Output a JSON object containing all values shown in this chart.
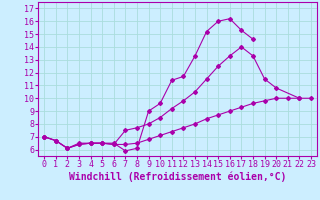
{
  "xlabel": "Windchill (Refroidissement éolien,°C)",
  "bg_color": "#cceeff",
  "line_color": "#aa00aa",
  "grid_color": "#aadddd",
  "xlim": [
    -0.5,
    23.5
  ],
  "ylim": [
    5.5,
    17.5
  ],
  "xticks": [
    0,
    1,
    2,
    3,
    4,
    5,
    6,
    7,
    8,
    9,
    10,
    11,
    12,
    13,
    14,
    15,
    16,
    17,
    18,
    19,
    20,
    21,
    22,
    23
  ],
  "yticks": [
    6,
    7,
    8,
    9,
    10,
    11,
    12,
    13,
    14,
    15,
    16,
    17
  ],
  "line1_x": [
    0,
    1,
    2,
    3,
    4,
    5,
    6,
    7,
    8,
    9,
    10,
    11,
    12,
    13,
    14,
    15,
    16,
    17,
    18
  ],
  "line1_y": [
    7.0,
    6.7,
    6.1,
    6.5,
    6.5,
    6.5,
    6.5,
    5.9,
    6.1,
    9.0,
    9.6,
    11.4,
    11.7,
    13.3,
    15.2,
    16.0,
    16.2,
    15.3,
    14.6
  ],
  "line2_x": [
    0,
    1,
    2,
    3,
    4,
    5,
    6,
    7,
    8,
    9,
    10,
    11,
    12,
    13,
    14,
    15,
    16,
    17,
    18,
    19,
    20,
    21,
    22,
    23
  ],
  "line2_y": [
    7.0,
    6.7,
    6.1,
    6.4,
    6.5,
    6.5,
    6.4,
    6.4,
    6.5,
    6.8,
    7.1,
    7.4,
    7.7,
    8.0,
    8.4,
    8.7,
    9.0,
    9.3,
    9.6,
    9.8,
    10.0,
    10.0,
    10.0,
    10.0
  ],
  "line3_x": [
    0,
    1,
    2,
    3,
    4,
    5,
    6,
    7,
    8,
    9,
    10,
    11,
    12,
    13,
    14,
    15,
    16,
    17,
    18,
    19,
    20,
    22
  ],
  "line3_y": [
    7.0,
    6.7,
    6.1,
    6.4,
    6.5,
    6.5,
    6.4,
    7.5,
    7.7,
    8.0,
    8.5,
    9.2,
    9.8,
    10.5,
    11.5,
    12.5,
    13.3,
    14.0,
    13.3,
    11.5,
    10.8,
    10.0
  ],
  "xlabel_fontsize": 7,
  "tick_fontsize": 6
}
